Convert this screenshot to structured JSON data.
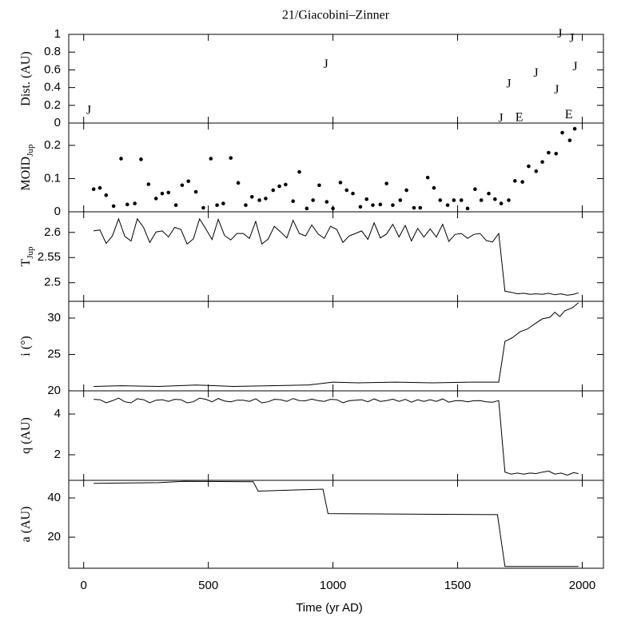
{
  "chart_data": [
    {
      "type": "scatter",
      "title": "21/Giacobini–Zinner",
      "ylabel": "Dist. (AU)",
      "xlim": [
        -60,
        2085
      ],
      "xticks": [
        0,
        500,
        1000,
        1500,
        2000
      ],
      "ylim": [
        0,
        1
      ],
      "yticks": [
        0,
        0.2,
        0.4,
        0.6,
        0.8,
        1
      ],
      "series": [
        {
          "marker": "J",
          "color": "#000000",
          "x": [
            20,
            971,
            1705,
            1814,
            1897,
            1910,
            1958,
            1971,
            1673
          ],
          "values": [
            0.1,
            0.62,
            0.4,
            0.52,
            0.33,
            0.96,
            0.91,
            0.59,
            0.01
          ]
        },
        {
          "marker": "E",
          "color": "#000000",
          "x": [
            1747,
            1946
          ],
          "values": [
            0.02,
            0.05
          ]
        }
      ]
    },
    {
      "type": "scatter",
      "ylabel": "MOID",
      "ylabel_sub": "Jup",
      "xlim": [
        -60,
        2085
      ],
      "xticks": [
        0,
        500,
        1000,
        1500,
        2000
      ],
      "ylim": [
        0,
        0.267
      ],
      "yticks": [
        0,
        0.1,
        0.2
      ],
      "series": [
        {
          "color": "#000000",
          "x": [
            40,
            65,
            90,
            120,
            150,
            175,
            205,
            230,
            260,
            290,
            315,
            340,
            370,
            395,
            420,
            450,
            480,
            510,
            535,
            560,
            590,
            620,
            650,
            675,
            705,
            730,
            760,
            785,
            810,
            840,
            865,
            895,
            920,
            945,
            975,
            1000,
            1030,
            1055,
            1080,
            1110,
            1135,
            1160,
            1190,
            1215,
            1240,
            1270,
            1295,
            1325,
            1350,
            1380,
            1405,
            1430,
            1460,
            1485,
            1515,
            1540,
            1570,
            1595,
            1625,
            1650,
            1675,
            1705,
            1730,
            1760,
            1785,
            1815,
            1840,
            1865,
            1895,
            1920,
            1950,
            1970
          ],
          "values": [
            0.068,
            0.072,
            0.05,
            0.017,
            0.16,
            0.022,
            0.025,
            0.158,
            0.083,
            0.04,
            0.055,
            0.058,
            0.02,
            0.08,
            0.092,
            0.06,
            0.012,
            0.16,
            0.02,
            0.025,
            0.162,
            0.087,
            0.02,
            0.045,
            0.035,
            0.04,
            0.065,
            0.077,
            0.082,
            0.032,
            0.12,
            0.01,
            0.035,
            0.08,
            0.03,
            0.01,
            0.088,
            0.065,
            0.055,
            0.015,
            0.038,
            0.02,
            0.022,
            0.085,
            0.02,
            0.035,
            0.065,
            0.012,
            0.012,
            0.103,
            0.072,
            0.035,
            0.02,
            0.035,
            0.035,
            0.01,
            0.068,
            0.035,
            0.055,
            0.038,
            0.025,
            0.035,
            0.093,
            0.09,
            0.137,
            0.122,
            0.15,
            0.178,
            0.175,
            0.238,
            0.215,
            0.25
          ]
        }
      ]
    },
    {
      "type": "line",
      "ylabel": "T",
      "ylabel_sub": "Jup",
      "xlim": [
        -60,
        2085
      ],
      "xticks": [
        0,
        500,
        1000,
        1500,
        2000
      ],
      "ylim": [
        2.463,
        2.641
      ],
      "yticks": [
        2.5,
        2.55,
        2.6
      ],
      "series": [
        {
          "color": "#000000",
          "x": [
            40,
            65,
            90,
            115,
            140,
            165,
            190,
            215,
            240,
            265,
            290,
            315,
            340,
            365,
            390,
            415,
            440,
            465,
            490,
            515,
            540,
            565,
            590,
            615,
            640,
            665,
            690,
            715,
            740,
            765,
            790,
            815,
            840,
            865,
            890,
            915,
            940,
            965,
            990,
            1015,
            1040,
            1065,
            1090,
            1115,
            1140,
            1165,
            1190,
            1215,
            1240,
            1265,
            1290,
            1315,
            1340,
            1365,
            1390,
            1415,
            1440,
            1465,
            1490,
            1515,
            1540,
            1565,
            1590,
            1615,
            1640,
            1665,
            1690,
            1715,
            1740,
            1765,
            1790,
            1815,
            1840,
            1865,
            1890,
            1915,
            1940,
            1965,
            1985
          ],
          "values": [
            2.603,
            2.605,
            2.578,
            2.593,
            2.627,
            2.592,
            2.583,
            2.627,
            2.61,
            2.58,
            2.601,
            2.603,
            2.591,
            2.61,
            2.606,
            2.577,
            2.587,
            2.627,
            2.607,
            2.586,
            2.626,
            2.594,
            2.585,
            2.598,
            2.598,
            2.588,
            2.622,
            2.577,
            2.587,
            2.612,
            2.601,
            2.589,
            2.624,
            2.598,
            2.593,
            2.615,
            2.597,
            2.588,
            2.612,
            2.606,
            2.58,
            2.593,
            2.598,
            2.603,
            2.586,
            2.619,
            2.589,
            2.597,
            2.616,
            2.591,
            2.614,
            2.583,
            2.608,
            2.591,
            2.607,
            2.591,
            2.616,
            2.582,
            2.596,
            2.598,
            2.588,
            2.596,
            2.598,
            2.584,
            2.581,
            2.598,
            2.483,
            2.481,
            2.478,
            2.479,
            2.477,
            2.478,
            2.477,
            2.479,
            2.476,
            2.478,
            2.475,
            2.477,
            2.48
          ]
        }
      ]
    },
    {
      "type": "line",
      "ylabel": "i (°)",
      "xlim": [
        -60,
        2085
      ],
      "xticks": [
        0,
        500,
        1000,
        1500,
        2000
      ],
      "ylim": [
        20,
        32.3
      ],
      "yticks": [
        20,
        25,
        30
      ],
      "series": [
        {
          "color": "#000000",
          "x": [
            40,
            150,
            300,
            450,
            600,
            750,
            900,
            1000,
            1100,
            1250,
            1400,
            1550,
            1665,
            1690,
            1720,
            1750,
            1780,
            1810,
            1840,
            1870,
            1890,
            1910,
            1930,
            1960,
            1985
          ],
          "values": [
            20.6,
            20.7,
            20.6,
            20.8,
            20.6,
            20.7,
            20.8,
            21.2,
            21.1,
            21.2,
            21.1,
            21.2,
            21.2,
            26.8,
            27.3,
            28.1,
            28.5,
            29.2,
            29.9,
            30.1,
            30.8,
            30.2,
            31.0,
            31.4,
            32.1
          ]
        }
      ]
    },
    {
      "type": "line",
      "ylabel": "q (AU)",
      "xlim": [
        -60,
        2085
      ],
      "xticks": [
        0,
        500,
        1000,
        1500,
        2000
      ],
      "ylim": [
        0.745,
        5.137
      ],
      "yticks": [
        2,
        4
      ],
      "series": [
        {
          "color": "#000000",
          "x": [
            40,
            65,
            90,
            115,
            140,
            165,
            190,
            215,
            240,
            265,
            290,
            315,
            340,
            365,
            390,
            415,
            440,
            465,
            490,
            515,
            540,
            565,
            590,
            615,
            640,
            665,
            690,
            715,
            740,
            765,
            790,
            815,
            840,
            865,
            890,
            915,
            940,
            965,
            990,
            1015,
            1040,
            1065,
            1090,
            1115,
            1140,
            1165,
            1190,
            1215,
            1240,
            1265,
            1290,
            1315,
            1340,
            1365,
            1390,
            1415,
            1440,
            1465,
            1490,
            1515,
            1540,
            1565,
            1590,
            1615,
            1640,
            1665,
            1690,
            1715,
            1740,
            1765,
            1790,
            1815,
            1840,
            1865,
            1890,
            1915,
            1940,
            1965,
            1985
          ],
          "values": [
            4.72,
            4.7,
            4.55,
            4.65,
            4.78,
            4.6,
            4.55,
            4.75,
            4.7,
            4.55,
            4.68,
            4.7,
            4.62,
            4.72,
            4.7,
            4.55,
            4.6,
            4.78,
            4.72,
            4.6,
            4.76,
            4.64,
            4.6,
            4.68,
            4.68,
            4.62,
            4.75,
            4.55,
            4.6,
            4.72,
            4.7,
            4.62,
            4.76,
            4.66,
            4.65,
            4.73,
            4.66,
            4.62,
            4.72,
            4.7,
            4.55,
            4.65,
            4.68,
            4.7,
            4.6,
            4.74,
            4.62,
            4.66,
            4.73,
            4.62,
            4.72,
            4.58,
            4.7,
            4.62,
            4.7,
            4.62,
            4.74,
            4.58,
            4.65,
            4.66,
            4.6,
            4.65,
            4.66,
            4.6,
            4.58,
            4.66,
            1.15,
            1.05,
            1.1,
            1.05,
            1.1,
            1.08,
            1.15,
            1.2,
            1.05,
            1.1,
            1.0,
            1.12,
            1.08
          ]
        }
      ]
    },
    {
      "type": "line",
      "ylabel": "a (AU)",
      "xlabel": "Time (yr AD)",
      "xlim": [
        -60,
        2085
      ],
      "xticks": [
        0,
        500,
        1000,
        1500,
        2000
      ],
      "ylim": [
        4.1,
        49
      ],
      "yticks": [
        20,
        40
      ],
      "series": [
        {
          "color": "#000000",
          "x": [
            40,
            300,
            400,
            680,
            700,
            960,
            980,
            1660,
            1690,
            1985
          ],
          "values": [
            47.5,
            47.8,
            48.5,
            48.3,
            43.5,
            44.5,
            32,
            31.5,
            5,
            5
          ]
        }
      ]
    }
  ]
}
